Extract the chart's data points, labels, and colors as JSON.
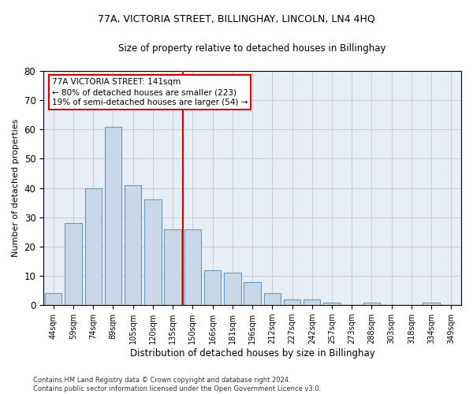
{
  "title1": "77A, VICTORIA STREET, BILLINGHAY, LINCOLN, LN4 4HQ",
  "title2": "Size of property relative to detached houses in Billinghay",
  "xlabel": "Distribution of detached houses by size in Billinghay",
  "ylabel": "Number of detached properties",
  "bar_labels": [
    "44sqm",
    "59sqm",
    "74sqm",
    "89sqm",
    "105sqm",
    "120sqm",
    "135sqm",
    "150sqm",
    "166sqm",
    "181sqm",
    "196sqm",
    "212sqm",
    "227sqm",
    "242sqm",
    "257sqm",
    "273sqm",
    "288sqm",
    "303sqm",
    "318sqm",
    "334sqm",
    "349sqm"
  ],
  "bar_values": [
    4,
    28,
    40,
    61,
    41,
    36,
    26,
    26,
    12,
    11,
    8,
    4,
    2,
    2,
    1,
    0,
    1,
    0,
    0,
    1,
    0
  ],
  "bar_color": "#c8d8e8",
  "bar_edge_color": "#6699bb",
  "vline_color": "#cc0000",
  "annotation_text": "77A VICTORIA STREET: 141sqm\n← 80% of detached houses are smaller (223)\n19% of semi-detached houses are larger (54) →",
  "annotation_box_color": "#ffffff",
  "annotation_box_edge": "#cc0000",
  "ylim": [
    0,
    80
  ],
  "yticks": [
    0,
    10,
    20,
    30,
    40,
    50,
    60,
    70,
    80
  ],
  "grid_color": "#cccccc",
  "bg_color": "#e8eef5",
  "footer": "Contains HM Land Registry data © Crown copyright and database right 2024.\nContains public sector information licensed under the Open Government Licence v3.0."
}
